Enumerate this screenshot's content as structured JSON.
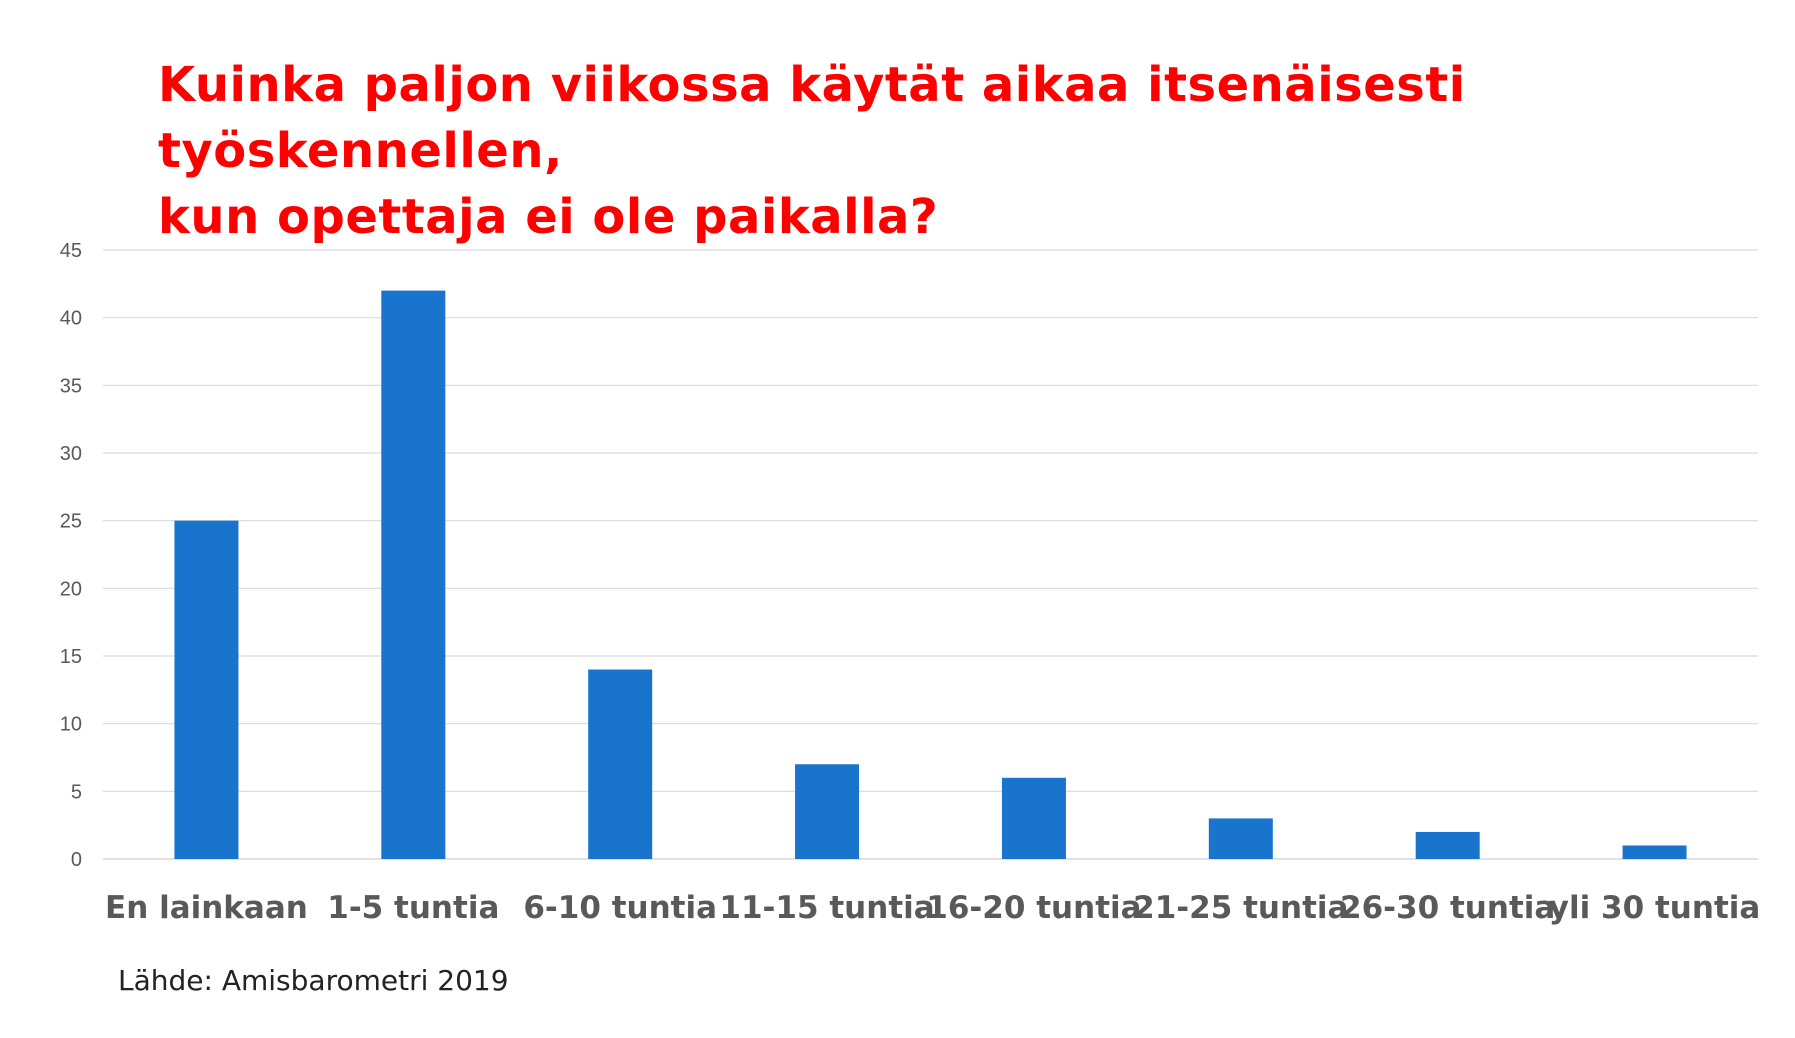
{
  "title_lines": [
    "Kuinka paljon viikossa käytät aikaa itsenäisesti työskennellen,",
    "kun opettaja ei ole paikalla?"
  ],
  "source": "Lähde: Amisbarometri 2019",
  "colors": {
    "title": "#ff0000",
    "bar": "#1874cd",
    "grid": "#d9d9d9",
    "tick_label": "#595959",
    "category_label": "#595959"
  },
  "chart_data": {
    "type": "bar",
    "title": "Kuinka paljon viikossa käytät aikaa itsenäisesti työskennellen, kun opettaja ei ole paikalla?",
    "categories": [
      "En lainkaan",
      "1-5 tuntia",
      "6-10 tuntia",
      "11-15 tuntia",
      "16-20 tuntia",
      "21-25 tuntia",
      "26-30 tuntia",
      "yli 30 tuntia"
    ],
    "values": [
      25,
      42,
      14,
      7,
      6,
      3,
      2,
      1
    ],
    "yticks": [
      0,
      5,
      10,
      15,
      20,
      25,
      30,
      35,
      40,
      45
    ],
    "ylim": [
      0,
      45
    ],
    "xlabel": "",
    "ylabel": "",
    "grid": true,
    "legend": "none"
  }
}
